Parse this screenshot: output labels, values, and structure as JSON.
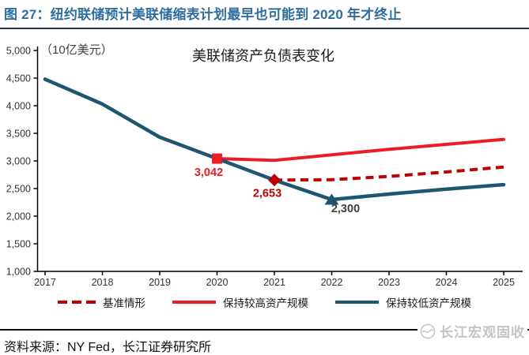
{
  "header": {
    "title": "图 27：纽约联储预计美联储缩表计划最早也可能到 2020 年才终止"
  },
  "chart_data": {
    "type": "line",
    "title": "美联储资产负债表变化",
    "unit_label": "（10亿美元）",
    "categories": [
      "2017",
      "2018",
      "2019",
      "2020",
      "2021",
      "2022",
      "2023",
      "2024",
      "2025"
    ],
    "ylim": [
      1000,
      5000
    ],
    "ytick_step": 500,
    "yticks": [
      "5,000",
      "4,500",
      "4,000",
      "3,500",
      "3,000",
      "2,500",
      "2,000",
      "1,500",
      "1,000"
    ],
    "grid": false,
    "legend_position": "bottom",
    "series": [
      {
        "name": "基准情形",
        "color": "#C00000",
        "style": "dashed",
        "x": [
          "2021",
          "2022",
          "2023",
          "2024",
          "2025"
        ],
        "values": [
          2653,
          2660,
          2720,
          2800,
          2890
        ],
        "marker": {
          "shape": "diamond",
          "at": "2021",
          "value": 2653,
          "label": "2,653",
          "label_color": "#C00000"
        }
      },
      {
        "name": "保持较高资产规模",
        "color": "#EC1C24",
        "style": "solid",
        "x": [
          "2020",
          "2021",
          "2022",
          "2023",
          "2024",
          "2025"
        ],
        "values": [
          3042,
          3010,
          3110,
          3210,
          3300,
          3390
        ],
        "marker": {
          "shape": "square",
          "at": "2020",
          "value": 3042,
          "label": "3,042",
          "label_color": "#EC1C24"
        }
      },
      {
        "name": "保持较低资产规模",
        "color": "#1E5570",
        "style": "solid",
        "x": [
          "2017",
          "2018",
          "2019",
          "2020",
          "2021",
          "2022",
          "2023",
          "2024",
          "2025"
        ],
        "values": [
          4480,
          4030,
          3430,
          3042,
          2653,
          2300,
          2400,
          2490,
          2570
        ],
        "marker": {
          "shape": "triangle",
          "at": "2022",
          "value": 2300,
          "label": "2,300",
          "label_color": "#404040"
        }
      }
    ]
  },
  "footer": {
    "source": "资料来源：NY Fed，长江证券研究所",
    "watermark": "长江宏观固收"
  },
  "colors": {
    "title_blue": "#2E6E9E",
    "divider_navy": "#17375E",
    "bright_red": "#EC1C24",
    "dark_red": "#C00000",
    "steel_blue": "#1E5570",
    "axis_black": "#000000",
    "tick_gray": "#333333",
    "watermark_gray": "#C3C3C3"
  }
}
